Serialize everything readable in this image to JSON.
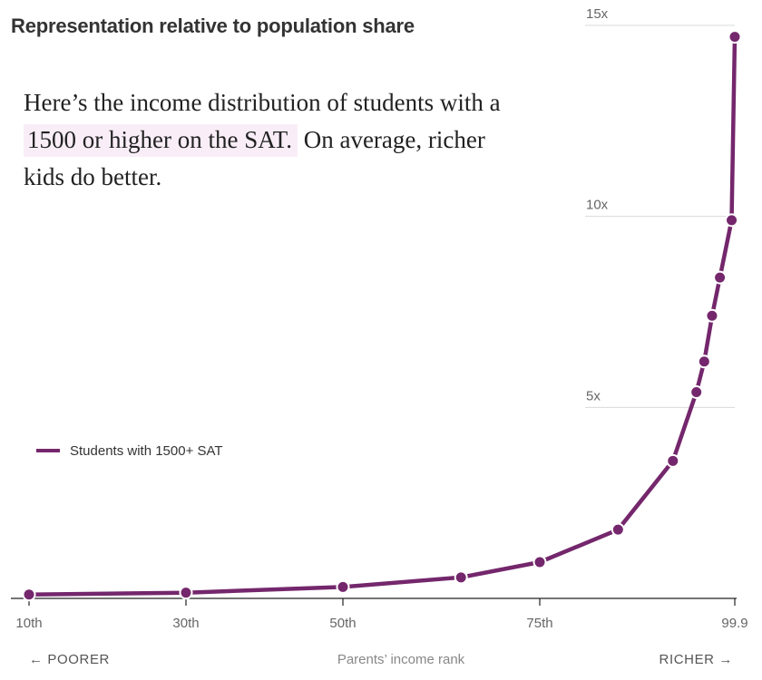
{
  "title": "Representation relative to population share",
  "description": {
    "before": "Here’s the income distribution of students with a ",
    "highlight": "1500 or higher on the SAT.",
    "after": " On average, richer kids do better."
  },
  "chart_data": {
    "type": "line",
    "title": "Representation relative to population share",
    "xlabel": "Parents’ income rank",
    "ylabel": "",
    "x_ticks": [
      {
        "value": 10,
        "label": "10th"
      },
      {
        "value": 30,
        "label": "30th"
      },
      {
        "value": 50,
        "label": "50th"
      },
      {
        "value": 75,
        "label": "75th"
      },
      {
        "value": 99.9,
        "label": "99.9"
      }
    ],
    "y_ticks": [
      {
        "value": 5,
        "label": "5x"
      },
      {
        "value": 10,
        "label": "10x"
      },
      {
        "value": 15,
        "label": "15x"
      }
    ],
    "ylim": [
      0,
      15
    ],
    "x_left_note": "← POORER",
    "x_right_note": "RICHER →",
    "grid": true,
    "legend_position": "left",
    "series": [
      {
        "name": "Students with 1500+ SAT",
        "color": "#74276c",
        "x": [
          10,
          30,
          50,
          65,
          75,
          85,
          92,
          95,
          96,
          97,
          98,
          99.5,
          99.9
        ],
        "y": [
          0.1,
          0.15,
          0.3,
          0.55,
          0.95,
          1.8,
          3.6,
          5.4,
          6.2,
          7.4,
          8.4,
          9.9,
          14.7
        ]
      }
    ]
  }
}
